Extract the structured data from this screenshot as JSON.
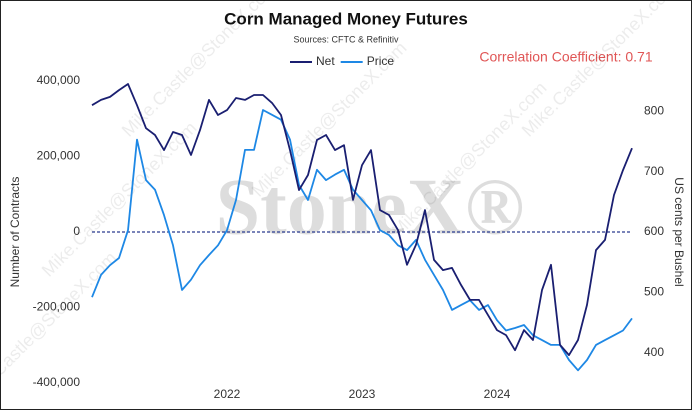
{
  "chart_data": {
    "type": "line",
    "title": "Corn Managed Money Futures",
    "subtitle": "Sources: CFTC & Refinitiv",
    "annotation": "Correlation Coefficient: 0.71",
    "watermark": "StoneX®",
    "watermark_email": "Mike.Castle@StoneX.com",
    "ylabel": "Number of Contracts",
    "y2label": "US cents per Bushel",
    "categories": [
      null,
      null,
      null,
      null,
      null,
      null,
      null,
      null,
      null,
      null,
      null,
      null,
      null,
      null,
      null,
      "2022",
      null,
      null,
      null,
      null,
      null,
      null,
      null,
      null,
      null,
      null,
      null,
      null,
      null,
      null,
      "2023",
      null,
      null,
      null,
      null,
      null,
      null,
      null,
      null,
      null,
      null,
      null,
      null,
      null,
      null,
      "2024",
      null,
      null,
      null,
      null,
      null,
      null,
      null,
      null,
      null,
      null,
      null,
      null,
      null,
      null,
      null
    ],
    "series": [
      {
        "name": "Net",
        "color": "#1a1f71",
        "axis": "y",
        "values": [
          336000,
          350000,
          358000,
          376000,
          392000,
          336000,
          275000,
          257000,
          217000,
          265000,
          257000,
          204000,
          270000,
          350000,
          310000,
          323000,
          355000,
          350000,
          363000,
          363000,
          342000,
          310000,
          217000,
          111000,
          151000,
          244000,
          257000,
          217000,
          230000,
          85000,
          177000,
          217000,
          58000,
          45000,
          5000,
          -87000,
          -34000,
          58000,
          -74000,
          -101000,
          -95000,
          -140000,
          -180000,
          -180000,
          -220000,
          -260000,
          -273000,
          -313000,
          -260000,
          -286000,
          -154000,
          -87000,
          -299000,
          -326000,
          -286000,
          -193000,
          -48000,
          -21000,
          98000,
          164000,
          222000
        ]
      },
      {
        "name": "Price",
        "color": "#1e88e5",
        "axis": "y2",
        "values": [
          492,
          529,
          545,
          557,
          603,
          753,
          686,
          670,
          628,
          578,
          504,
          521,
          545,
          562,
          578,
          603,
          653,
          736,
          736,
          802,
          794,
          786,
          753,
          678,
          653,
          703,
          686,
          695,
          703,
          670,
          653,
          636,
          603,
          595,
          578,
          570,
          587,
          554,
          529,
          504,
          471,
          479,
          487,
          471,
          479,
          454,
          437,
          441,
          446,
          429,
          421,
          413,
          413,
          388,
          371,
          388,
          413,
          421,
          429,
          437,
          457
        ]
      }
    ],
    "ylim": [
      -400000,
      400000
    ],
    "yticks": [
      {
        "value": -400000,
        "label": "-400,000"
      },
      {
        "value": -200000,
        "label": "-200,000"
      },
      0,
      {
        "value": 200000,
        "label": "200,000"
      },
      {
        "value": 400000,
        "label": "400,000"
      }
    ],
    "y2lim": [
      350,
      850
    ],
    "y2ticks": [
      400,
      500,
      600,
      700,
      800
    ],
    "hline": 0,
    "legend": "top"
  }
}
